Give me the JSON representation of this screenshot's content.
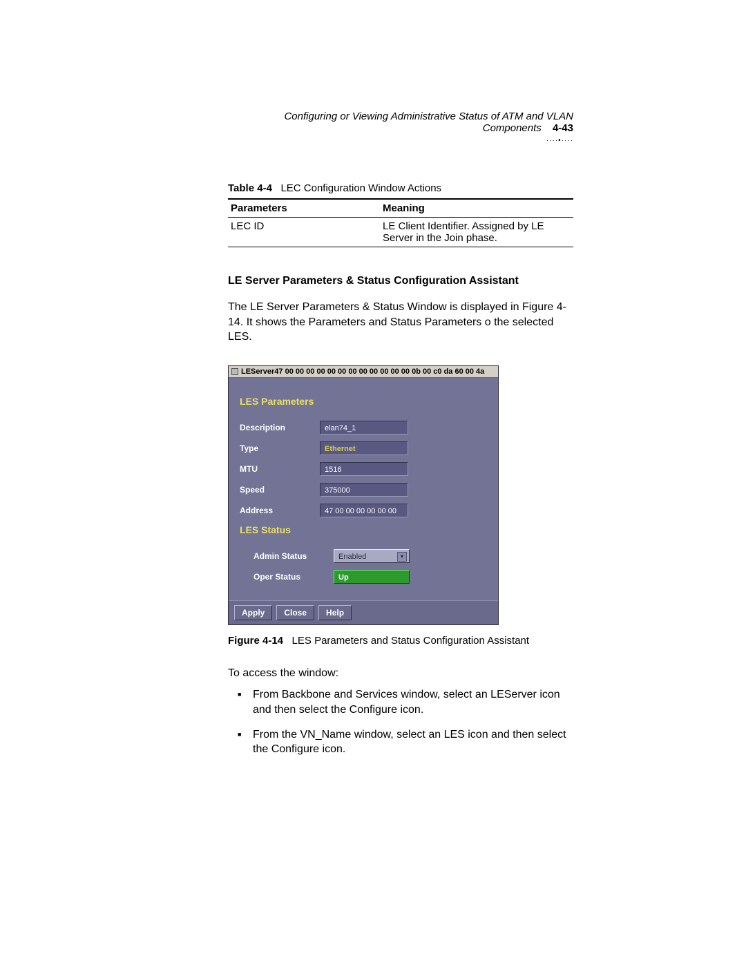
{
  "header": {
    "running_title": "Configuring or Viewing Administrative Status of ATM and VLAN Components",
    "page_number": "4-43",
    "dots": "····•····"
  },
  "table": {
    "caption_label": "Table 4-4",
    "caption_text": "LEC Configuration Window Actions",
    "columns": [
      "Parameters",
      "Meaning"
    ],
    "rows": [
      [
        "LEC ID",
        "LE Client Identifier. Assigned by LE Server in the Join phase."
      ]
    ]
  },
  "section": {
    "title": "LE Server Parameters & Status Configuration Assistant",
    "intro": "The LE Server Parameters & Status Window is displayed in Figure 4-14. It shows the Parameters and Status Parameters o the selected LES."
  },
  "screenshot": {
    "title": "LEServer47 00 00 00 00 00 00 00 00 00 00 00 00 0b 00 c0 da 60 00 4a",
    "params_header": "LES Parameters",
    "status_header": "LES Status",
    "fields": {
      "description": {
        "label": "Description",
        "value": "elan74_1"
      },
      "type": {
        "label": "Type",
        "value": "Ethernet"
      },
      "mtu": {
        "label": "MTU",
        "value": "1516"
      },
      "speed": {
        "label": "Speed",
        "value": "375000"
      },
      "address": {
        "label": "Address",
        "value": "47 00 00 00 00 00 00"
      }
    },
    "status": {
      "admin": {
        "label": "Admin Status",
        "value": "Enabled"
      },
      "oper": {
        "label": "Oper Status",
        "value": "Up"
      }
    },
    "buttons": {
      "apply": "Apply",
      "close": "Close",
      "help": "Help"
    },
    "colors": {
      "panel_bg": "#737396",
      "field_bg": "#585880",
      "titlebar_bg": "#d4d0c8",
      "accent_text": "#e8e060",
      "up_bg": "#2c9a2c"
    }
  },
  "figure": {
    "label": "Figure 4-14",
    "text": "LES Parameters and Status Configuration Assistant"
  },
  "access": {
    "lead": "To access the window:",
    "items": [
      "From Backbone and Services window, select an LEServer icon and then select the Configure icon.",
      "From the VN_Name window, select an LES icon and then select the Configure icon."
    ]
  }
}
